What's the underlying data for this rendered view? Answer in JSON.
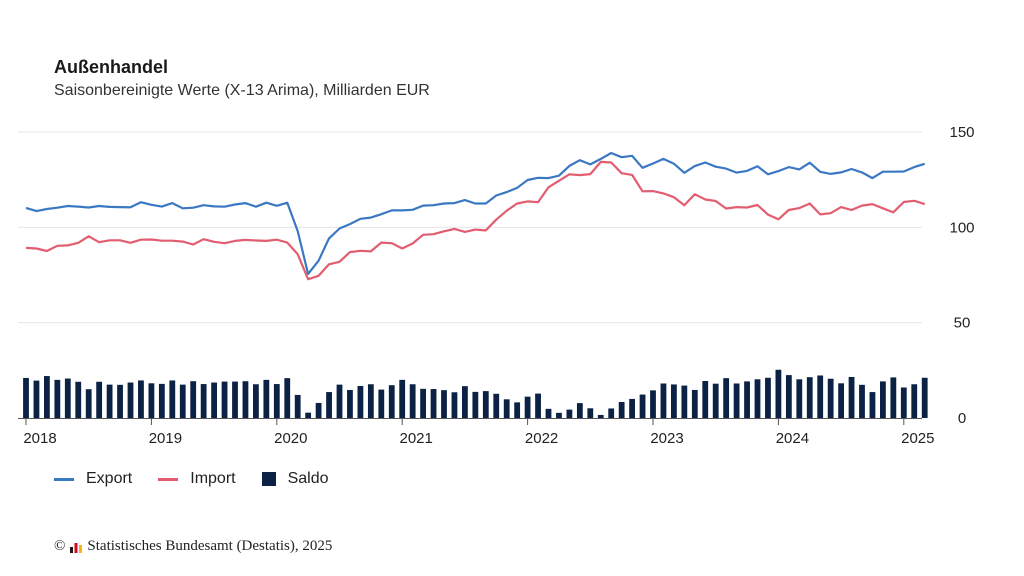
{
  "title": "Außenhandel",
  "subtitle": "Saisonbereinigte Werte (X-13 Arima), Milliarden EUR",
  "source": {
    "copyright": "©",
    "text": "Statistisches Bundesamt (Destatis), 2025"
  },
  "colors": {
    "export": "#3b78c3",
    "import": "#e25d6f",
    "saldo": "#0b2244",
    "grid": "#e4e4e4",
    "axis": "#555555"
  },
  "chart_data": {
    "type": "bar+line",
    "start": "2018-01",
    "frequency": "monthly",
    "xtick_labels": [
      "2018",
      "2019",
      "2020",
      "2021",
      "2022",
      "2023",
      "2024",
      "2025"
    ],
    "ytick_labels": [
      "0",
      "50",
      "100",
      "150"
    ],
    "ylim": [
      0,
      150
    ],
    "grid": true,
    "legend_position": "bottom-left",
    "series": [
      {
        "name": "Export",
        "type": "line",
        "values": [
          110.2,
          108.5,
          109.6,
          110.3,
          111.2,
          110.9,
          110.4,
          111.2,
          110.7,
          110.6,
          110.5,
          113.2,
          111.8,
          110.9,
          112.7,
          110.0,
          110.3,
          111.6,
          111.0,
          110.8,
          112.0,
          112.7,
          110.8,
          112.9,
          111.3,
          112.9,
          98.0,
          75.6,
          82.5,
          94.2,
          99.4,
          101.7,
          104.5,
          105.1,
          106.9,
          108.9,
          108.9,
          109.2,
          111.4,
          111.6,
          112.5,
          112.7,
          114.3,
          112.5,
          112.5,
          116.7,
          118.5,
          120.7,
          124.8,
          126.0,
          125.8,
          127.1,
          132.2,
          135.2,
          133.0,
          135.9,
          139.0,
          136.8,
          137.5,
          131.2,
          133.5,
          135.9,
          133.4,
          128.6,
          132.1,
          134.0,
          131.8,
          130.8,
          128.7,
          129.6,
          132.0,
          127.8,
          129.5,
          131.6,
          130.4,
          133.9,
          129.1,
          128.0,
          128.8,
          130.6,
          128.8,
          125.8,
          129.2,
          129.2,
          129.3,
          131.6,
          133.3
        ]
      },
      {
        "name": "Import",
        "type": "line",
        "values": [
          89.2,
          88.9,
          87.6,
          90.3,
          90.5,
          91.9,
          95.3,
          92.2,
          93.2,
          93.2,
          91.9,
          93.5,
          93.6,
          93.0,
          93.0,
          92.5,
          91.0,
          93.8,
          92.4,
          91.7,
          92.9,
          93.4,
          93.1,
          92.9,
          93.5,
          92.0,
          85.9,
          72.8,
          74.6,
          80.6,
          81.9,
          87.0,
          87.7,
          87.4,
          92.0,
          91.7,
          88.9,
          91.5,
          96.1,
          96.4,
          97.9,
          99.2,
          97.6,
          98.8,
          98.4,
          104.0,
          108.7,
          112.5,
          113.6,
          113.2,
          121.0,
          124.4,
          127.8,
          127.4,
          127.9,
          134.3,
          134.0,
          128.4,
          127.5,
          118.9,
          119.0,
          117.8,
          115.8,
          111.6,
          117.4,
          114.6,
          113.8,
          109.9,
          110.6,
          110.4,
          111.7,
          106.7,
          104.2,
          109.1,
          110.1,
          112.5,
          106.8,
          107.4,
          110.6,
          109.1,
          111.4,
          112.2,
          110.0,
          107.9,
          113.3,
          113.9,
          112.2
        ]
      },
      {
        "name": "Saldo",
        "type": "bar",
        "values": [
          21.0,
          19.6,
          22.0,
          20.0,
          20.7,
          19.0,
          15.1,
          19.0,
          17.5,
          17.4,
          18.6,
          19.7,
          18.2,
          17.9,
          19.7,
          17.5,
          19.3,
          17.8,
          18.6,
          19.1,
          19.1,
          19.3,
          17.7,
          20.0,
          17.8,
          20.9,
          12.1,
          2.8,
          7.9,
          13.6,
          17.5,
          14.7,
          16.8,
          17.7,
          14.9,
          17.2,
          20.0,
          17.7,
          15.3,
          15.2,
          14.6,
          13.5,
          16.7,
          13.7,
          14.1,
          12.7,
          9.8,
          8.2,
          11.2,
          12.8,
          4.8,
          2.7,
          4.4,
          7.8,
          5.1,
          1.6,
          5.0,
          8.4,
          10.0,
          12.3,
          14.5,
          18.1,
          17.6,
          17.0,
          14.7,
          19.4,
          18.0,
          20.9,
          18.1,
          19.2,
          20.3,
          21.1,
          25.3,
          22.5,
          20.3,
          21.4,
          22.3,
          20.6,
          18.2,
          21.5,
          17.4,
          13.6,
          19.2,
          21.3,
          16.0,
          17.7,
          21.1
        ]
      }
    ]
  }
}
